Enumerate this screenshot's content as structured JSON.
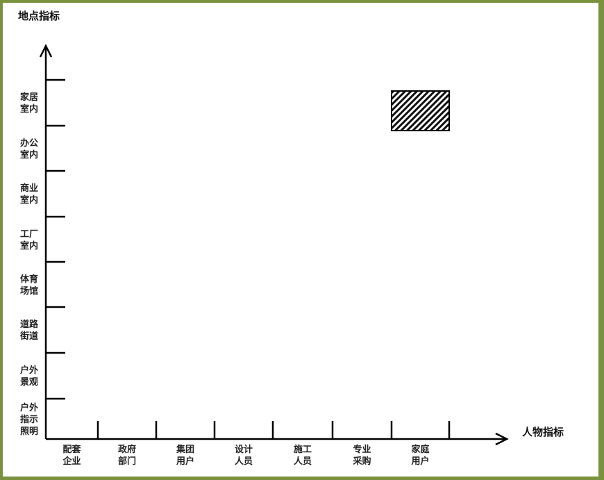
{
  "y_axis": {
    "title": "地点指标",
    "labels": [
      [
        "家居",
        "室内"
      ],
      [
        "办公",
        "室内"
      ],
      [
        "商业",
        "室内"
      ],
      [
        "工厂",
        "室内"
      ],
      [
        "体育",
        "场馆"
      ],
      [
        "道路",
        "街道"
      ],
      [
        "户外",
        "景观"
      ],
      [
        "户外",
        "指示",
        "照明"
      ]
    ]
  },
  "x_axis": {
    "title": "人物指标",
    "labels": [
      [
        "配套",
        "企业"
      ],
      [
        "政府",
        "部门"
      ],
      [
        "集团",
        "用户"
      ],
      [
        "设计",
        "人员"
      ],
      [
        "施工",
        "人员"
      ],
      [
        "专业",
        "采购"
      ],
      [
        "家庭",
        "用户"
      ]
    ]
  },
  "highlight": {
    "x_category": "家庭用户",
    "y_category": "家居室内",
    "pattern": "diagonal-hatch"
  },
  "colors": {
    "border": "#7a913e",
    "axis": "#000000"
  }
}
